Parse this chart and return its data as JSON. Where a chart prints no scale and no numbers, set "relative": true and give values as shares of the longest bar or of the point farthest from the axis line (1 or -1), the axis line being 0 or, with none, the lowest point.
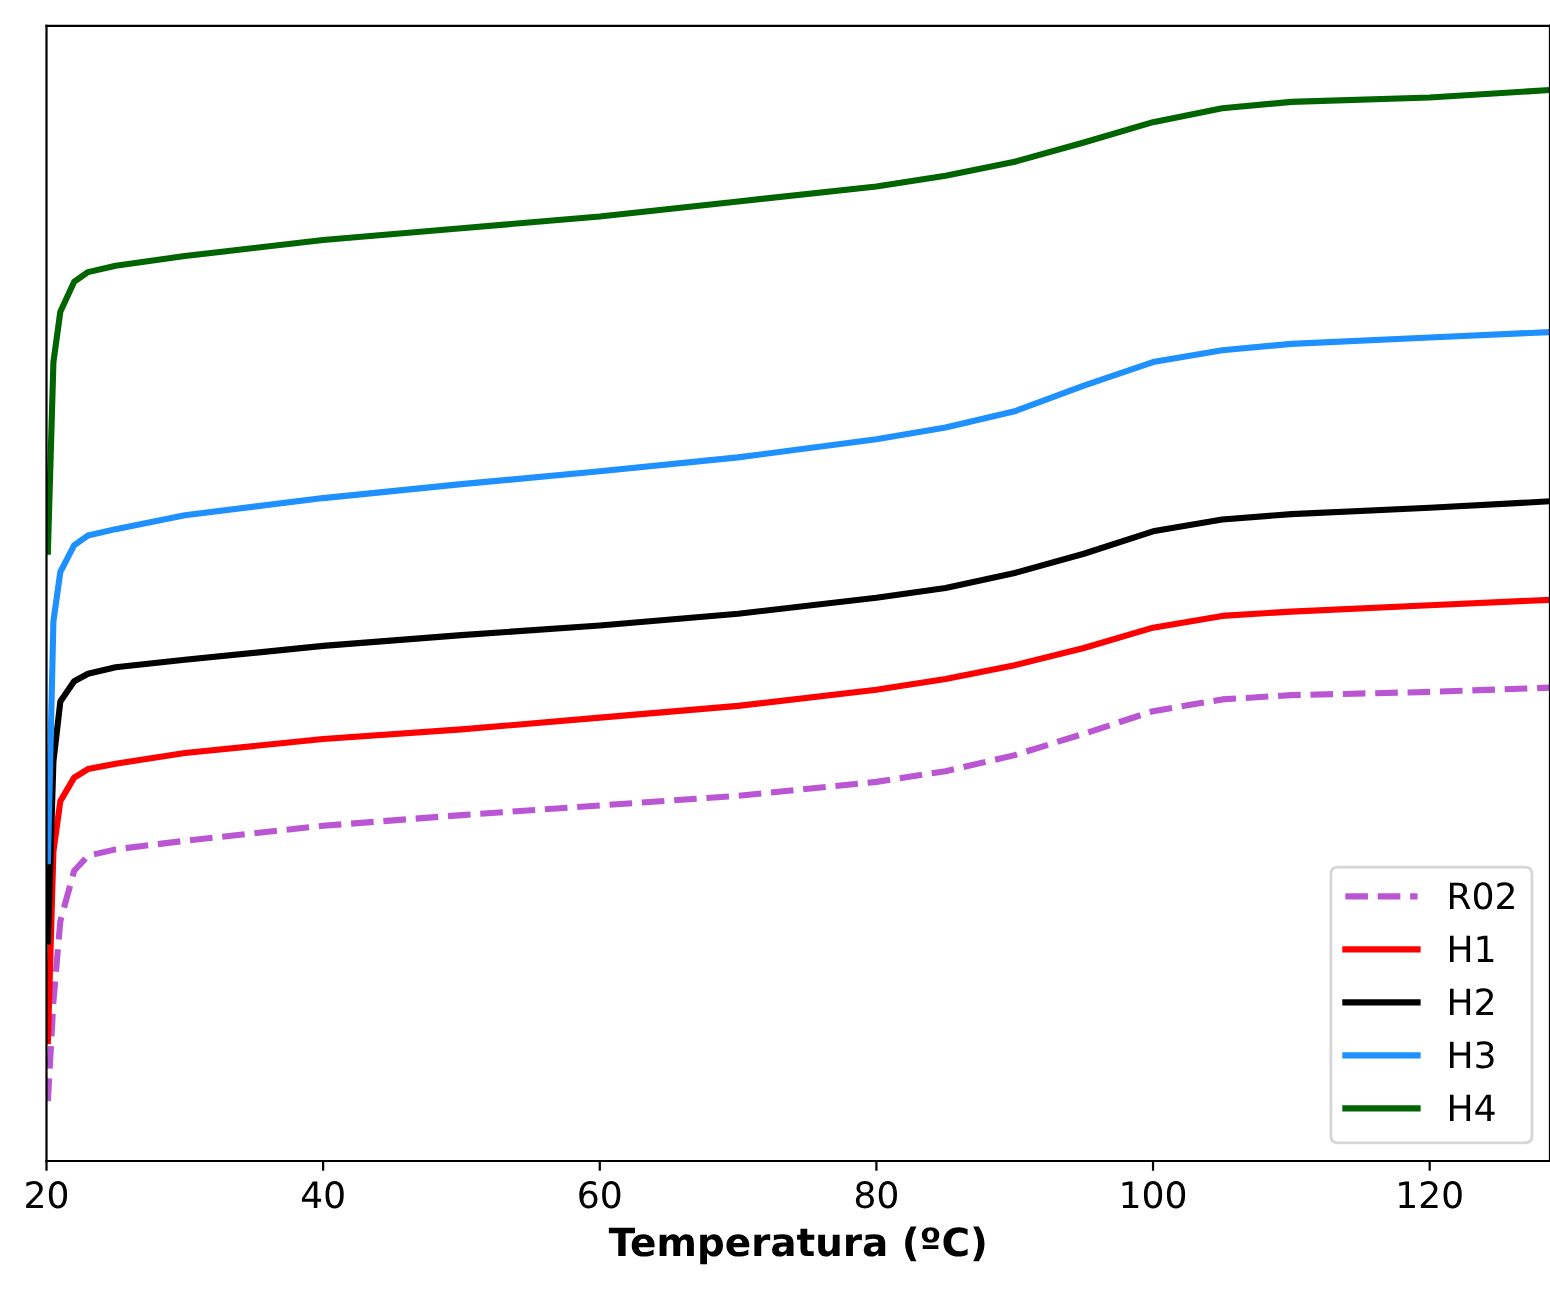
{
  "chart_data": {
    "type": "line",
    "relative": true,
    "xlabel": "Temperatura (ºC)",
    "xlim": [
      20,
      128.7
    ],
    "xticks": [
      20,
      40,
      60,
      80,
      100,
      120
    ],
    "legend": "bottom right",
    "grid": false,
    "marker": "none",
    "x": [
      20.1,
      20.5,
      21,
      22,
      23,
      25,
      30,
      40,
      50,
      60,
      70,
      80,
      85,
      90,
      95,
      100,
      105,
      110,
      120,
      128.7
    ],
    "series": [
      {
        "name": "R02",
        "color": "#ba55d3",
        "line_style": "dashed",
        "values": [
          0.056,
          0.149,
          0.224,
          0.271,
          0.285,
          0.291,
          0.299,
          0.313,
          0.323,
          0.332,
          0.341,
          0.354,
          0.364,
          0.379,
          0.399,
          0.42,
          0.431,
          0.435,
          0.438,
          0.442
        ]
      },
      {
        "name": "H1",
        "color": "#ff0000",
        "line_style": "solid",
        "values": [
          0.112,
          0.289,
          0.336,
          0.358,
          0.366,
          0.371,
          0.381,
          0.394,
          0.403,
          0.414,
          0.425,
          0.44,
          0.45,
          0.463,
          0.479,
          0.498,
          0.509,
          0.513,
          0.519,
          0.524
        ]
      },
      {
        "name": "H2",
        "color": "#000000",
        "line_style": "solid",
        "values": [
          0.205,
          0.373,
          0.429,
          0.448,
          0.455,
          0.461,
          0.468,
          0.481,
          0.491,
          0.5,
          0.511,
          0.526,
          0.535,
          0.549,
          0.567,
          0.588,
          0.599,
          0.604,
          0.61,
          0.616
        ]
      },
      {
        "name": "H3",
        "color": "#1e90ff",
        "line_style": "solid",
        "values": [
          0.28,
          0.504,
          0.55,
          0.575,
          0.584,
          0.59,
          0.603,
          0.619,
          0.632,
          0.644,
          0.657,
          0.674,
          0.685,
          0.7,
          0.724,
          0.746,
          0.757,
          0.763,
          0.769,
          0.774
        ]
      },
      {
        "name": "H4",
        "color": "#006400",
        "line_style": "solid",
        "values": [
          0.569,
          0.746,
          0.793,
          0.821,
          0.83,
          0.836,
          0.845,
          0.86,
          0.871,
          0.882,
          0.896,
          0.91,
          0.92,
          0.933,
          0.951,
          0.97,
          0.983,
          0.989,
          0.993,
          1
        ]
      }
    ]
  }
}
